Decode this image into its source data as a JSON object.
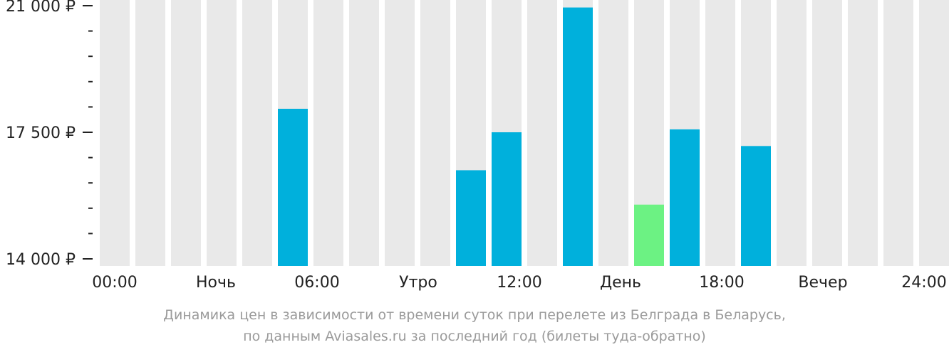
{
  "chart_data": {
    "type": "bar",
    "y_unit": "₽",
    "ylim": [
      14000,
      21000
    ],
    "y_major_ticks": [
      {
        "value": 21000,
        "label": "21 000 ₽"
      },
      {
        "value": 17500,
        "label": "17 500 ₽"
      },
      {
        "value": 14000,
        "label": "14 000 ₽"
      }
    ],
    "y_minor_ticks": [
      20300,
      19600,
      18900,
      18200,
      16800,
      16100,
      15400,
      14700
    ],
    "hour_slots": 24,
    "values": [
      null,
      null,
      null,
      null,
      null,
      18150,
      null,
      null,
      null,
      null,
      16450,
      17500,
      null,
      20950,
      null,
      15500,
      17580,
      null,
      17120,
      null,
      null,
      null,
      null,
      null
    ],
    "highlight_index": 15,
    "x_labels": [
      "00:00",
      "Ночь",
      "06:00",
      "Утро",
      "12:00",
      "День",
      "18:00",
      "Вечер",
      "24:00"
    ],
    "colors": {
      "background_column": "#e9e9e9",
      "bar": "#00b0dc",
      "highlight_bar": "#6cf283",
      "axis": "#222222"
    },
    "grid": false,
    "legend": "none"
  },
  "caption": {
    "line1": "Динамика цен в зависимости от времени суток при перелете из Белграда в Беларусь,",
    "line2": "по данным Aviasales.ru за последний год (билеты туда-обратно)"
  }
}
